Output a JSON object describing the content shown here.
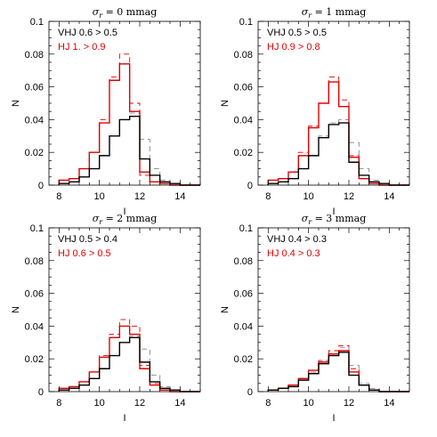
{
  "chart_data": [
    {
      "type": "step",
      "title_sigma": "σ",
      "title_sub": "r",
      "title_rest": " = 0 mmag",
      "xlabel": "I",
      "ylabel": "N",
      "xlim": [
        7.5,
        15
      ],
      "ylim": [
        0,
        0.1
      ],
      "xticks": [
        8,
        10,
        12,
        14
      ],
      "yticks": [
        "0",
        "0.02",
        "0.04",
        "0.06",
        "0.08",
        "0.1"
      ],
      "ytick_values": [
        0,
        0.02,
        0.04,
        0.06,
        0.08,
        0.1
      ],
      "legend": [
        {
          "text": "VHJ 0.6 > 0.5",
          "color": "#000000"
        },
        {
          "text": "HJ 1. > 0.9",
          "color": "#e00000"
        }
      ],
      "bin_edges": [
        8,
        8.5,
        9,
        9.5,
        10,
        10.5,
        11,
        11.5,
        12,
        12.5,
        13,
        13.5,
        14,
        14.5,
        15
      ],
      "series": [
        {
          "color": "#e00000",
          "dashed": true,
          "values": [
            0.003,
            0.004,
            0.01,
            0.02,
            0.04,
            0.066,
            0.08,
            0.05,
            0.006,
            0.002,
            0.001,
            0.0,
            0.0,
            0.0
          ]
        },
        {
          "color": "#888888",
          "dashed": true,
          "values": [
            0.001,
            0.002,
            0.005,
            0.01,
            0.018,
            0.03,
            0.04,
            0.044,
            0.028,
            0.01,
            0.003,
            0.001,
            0.0,
            0.0
          ]
        },
        {
          "color": "#e00000",
          "dashed": false,
          "values": [
            0.003,
            0.004,
            0.01,
            0.02,
            0.038,
            0.064,
            0.074,
            0.045,
            0.008,
            0.002,
            0.001,
            0.0,
            0.0,
            0.0
          ]
        },
        {
          "color": "#000000",
          "dashed": false,
          "values": [
            0.001,
            0.002,
            0.005,
            0.01,
            0.018,
            0.03,
            0.04,
            0.042,
            0.016,
            0.006,
            0.002,
            0.001,
            0.0,
            0.0
          ]
        }
      ]
    },
    {
      "type": "step",
      "title_sigma": "σ",
      "title_sub": "r",
      "title_rest": " = 1 mmag",
      "xlabel": "I",
      "ylabel": "N",
      "xlim": [
        7.5,
        15
      ],
      "ylim": [
        0,
        0.1
      ],
      "xticks": [
        8,
        10,
        12,
        14
      ],
      "yticks": [
        "0",
        "0.02",
        "0.04",
        "0.06",
        "0.08",
        "0.1"
      ],
      "ytick_values": [
        0,
        0.02,
        0.04,
        0.06,
        0.08,
        0.1
      ],
      "legend": [
        {
          "text": "VHJ 0.5 > 0.5",
          "color": "#000000"
        },
        {
          "text": "HJ 0.9 > 0.8",
          "color": "#e00000"
        }
      ],
      "bin_edges": [
        8,
        8.5,
        9,
        9.5,
        10,
        10.5,
        11,
        11.5,
        12,
        12.5,
        13,
        13.5,
        14,
        14.5,
        15
      ],
      "series": [
        {
          "color": "#e00000",
          "dashed": true,
          "values": [
            0.003,
            0.004,
            0.008,
            0.02,
            0.036,
            0.05,
            0.066,
            0.052,
            0.018,
            0.004,
            0.001,
            0.0,
            0.0,
            0.0
          ]
        },
        {
          "color": "#888888",
          "dashed": true,
          "values": [
            0.001,
            0.002,
            0.004,
            0.01,
            0.018,
            0.03,
            0.038,
            0.04,
            0.026,
            0.01,
            0.003,
            0.001,
            0.0,
            0.0
          ]
        },
        {
          "color": "#e00000",
          "dashed": false,
          "values": [
            0.003,
            0.004,
            0.008,
            0.018,
            0.035,
            0.05,
            0.063,
            0.048,
            0.017,
            0.004,
            0.001,
            0.0,
            0.0,
            0.0
          ]
        },
        {
          "color": "#000000",
          "dashed": false,
          "values": [
            0.001,
            0.002,
            0.004,
            0.01,
            0.018,
            0.029,
            0.037,
            0.038,
            0.014,
            0.006,
            0.002,
            0.001,
            0.0,
            0.0
          ]
        }
      ]
    },
    {
      "type": "step",
      "title_sigma": "σ",
      "title_sub": "r",
      "title_rest": " = 2 mmag",
      "xlabel": "I",
      "ylabel": "N",
      "xlim": [
        7.5,
        15
      ],
      "ylim": [
        0,
        0.1
      ],
      "xticks": [
        8,
        10,
        12,
        14
      ],
      "yticks": [
        "0",
        "0.02",
        "0.04",
        "0.06",
        "0.08",
        "0.1"
      ],
      "ytick_values": [
        0,
        0.02,
        0.04,
        0.06,
        0.08,
        0.1
      ],
      "legend": [
        {
          "text": "VHJ 0.5 > 0.4",
          "color": "#000000"
        },
        {
          "text": "HJ 0.6 > 0.5",
          "color": "#e00000"
        }
      ],
      "bin_edges": [
        8,
        8.5,
        9,
        9.5,
        10,
        10.5,
        11,
        11.5,
        12,
        12.5,
        13,
        13.5,
        14,
        14.5,
        15
      ],
      "series": [
        {
          "color": "#e00000",
          "dashed": true,
          "values": [
            0.002,
            0.003,
            0.006,
            0.012,
            0.022,
            0.035,
            0.044,
            0.04,
            0.016,
            0.005,
            0.001,
            0.0,
            0.0,
            0.0
          ]
        },
        {
          "color": "#888888",
          "dashed": true,
          "values": [
            0.001,
            0.002,
            0.004,
            0.008,
            0.014,
            0.022,
            0.03,
            0.034,
            0.026,
            0.01,
            0.003,
            0.001,
            0.0,
            0.0
          ]
        },
        {
          "color": "#e00000",
          "dashed": false,
          "values": [
            0.002,
            0.003,
            0.006,
            0.012,
            0.021,
            0.033,
            0.04,
            0.035,
            0.014,
            0.004,
            0.001,
            0.0,
            0.0,
            0.0
          ]
        },
        {
          "color": "#000000",
          "dashed": false,
          "values": [
            0.001,
            0.002,
            0.004,
            0.008,
            0.014,
            0.022,
            0.03,
            0.033,
            0.018,
            0.006,
            0.002,
            0.001,
            0.0,
            0.0
          ]
        }
      ]
    },
    {
      "type": "step",
      "title_sigma": "σ",
      "title_sub": "r",
      "title_rest": " = 3 mmag",
      "xlabel": "I",
      "ylabel": "N",
      "xlim": [
        7.5,
        15
      ],
      "ylim": [
        0,
        0.1
      ],
      "xticks": [
        8,
        10,
        12,
        14
      ],
      "yticks": [
        "0",
        "0.02",
        "0.04",
        "0.06",
        "0.08",
        "0.1"
      ],
      "ytick_values": [
        0,
        0.02,
        0.04,
        0.06,
        0.08,
        0.1
      ],
      "legend": [
        {
          "text": "VHJ 0.4 > 0.3",
          "color": "#000000"
        },
        {
          "text": "HJ 0.4 > 0.3",
          "color": "#e00000"
        }
      ],
      "bin_edges": [
        8,
        8.5,
        9,
        9.5,
        10,
        10.5,
        11,
        11.5,
        12,
        12.5,
        13,
        13.5,
        14,
        14.5,
        15
      ],
      "series": [
        {
          "color": "#e00000",
          "dashed": true,
          "values": [
            0.001,
            0.002,
            0.004,
            0.008,
            0.013,
            0.019,
            0.025,
            0.028,
            0.014,
            0.004,
            0.001,
            0.0,
            0.0,
            0.0
          ]
        },
        {
          "color": "#888888",
          "dashed": true,
          "values": [
            0.001,
            0.002,
            0.004,
            0.007,
            0.012,
            0.018,
            0.023,
            0.027,
            0.016,
            0.005,
            0.002,
            0.0,
            0.0,
            0.0
          ]
        },
        {
          "color": "#e00000",
          "dashed": false,
          "values": [
            0.001,
            0.002,
            0.004,
            0.008,
            0.013,
            0.018,
            0.023,
            0.025,
            0.012,
            0.004,
            0.001,
            0.0,
            0.0,
            0.0
          ]
        },
        {
          "color": "#000000",
          "dashed": false,
          "values": [
            0.001,
            0.002,
            0.003,
            0.007,
            0.011,
            0.017,
            0.022,
            0.024,
            0.01,
            0.004,
            0.001,
            0.0,
            0.0,
            0.0
          ]
        }
      ]
    }
  ]
}
